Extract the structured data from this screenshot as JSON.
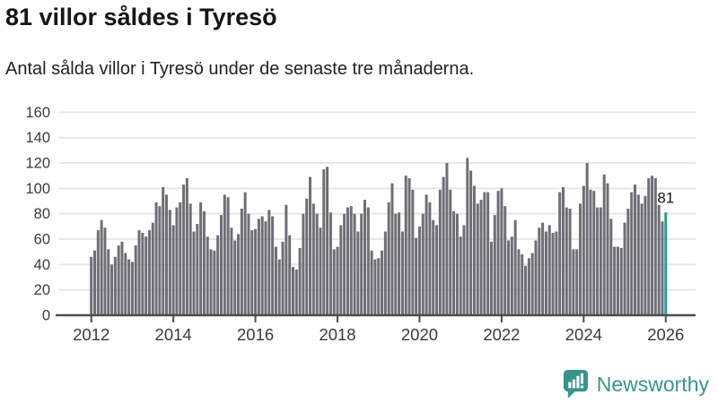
{
  "header": {
    "title": "81 villor såldes i Tyresö",
    "subtitle": "Antal sålda villor i Tyresö under de senaste tre månaderna."
  },
  "branding": {
    "name": "Newsworthy",
    "icon": "newsworthy-speech-bubble-bar-chart-icon",
    "color": "#37948c"
  },
  "colors": {
    "bar": "#6e6e75",
    "highlight": "#239c9c",
    "grid": "#e6e6e6",
    "axis": "#4d4d4d",
    "tick_label": "#3a3a3a",
    "value_label": "#161616"
  },
  "chart_data": {
    "type": "bar",
    "title": "81 villor såldes i Tyresö",
    "subtitle": "Antal sålda villor i Tyresö under de senaste tre månaderna.",
    "xlabel": "",
    "ylabel": "",
    "x_start": "2012-01",
    "frequency": "monthly",
    "ylim": [
      0,
      160
    ],
    "grid": true,
    "legend": false,
    "y_ticks": [
      0,
      20,
      40,
      60,
      80,
      100,
      120,
      140,
      160
    ],
    "x_tick_years": [
      2012,
      2014,
      2016,
      2018,
      2020,
      2022,
      2024,
      2026
    ],
    "values": [
      46,
      51,
      67,
      75,
      69,
      52,
      40,
      46,
      55,
      58,
      49,
      44,
      42,
      55,
      67,
      65,
      62,
      67,
      73,
      89,
      86,
      101,
      95,
      83,
      71,
      85,
      89,
      103,
      108,
      88,
      66,
      72,
      89,
      82,
      62,
      52,
      51,
      63,
      79,
      95,
      93,
      69,
      59,
      64,
      84,
      97,
      80,
      67,
      68,
      76,
      78,
      74,
      83,
      78,
      54,
      44,
      58,
      87,
      63,
      38,
      36,
      53,
      80,
      92,
      109,
      88,
      80,
      69,
      115,
      117,
      81,
      52,
      54,
      71,
      80,
      85,
      86,
      80,
      66,
      80,
      91,
      85,
      51,
      44,
      45,
      51,
      66,
      89,
      104,
      80,
      81,
      66,
      110,
      108,
      99,
      61,
      70,
      80,
      95,
      89,
      75,
      71,
      99,
      109,
      120,
      99,
      82,
      80,
      62,
      71,
      124,
      114,
      102,
      88,
      91,
      97,
      97,
      58,
      79,
      98,
      100,
      86,
      59,
      62,
      75,
      52,
      48,
      39,
      45,
      49,
      59,
      69,
      73,
      66,
      71,
      65,
      66,
      97,
      101,
      85,
      84,
      52,
      52,
      88,
      102,
      120,
      99,
      98,
      85,
      85,
      111,
      104,
      76,
      54,
      54,
      53,
      73,
      84,
      97,
      103,
      95,
      88,
      94,
      108,
      110,
      108,
      87,
      74,
      81
    ],
    "highlight": {
      "index": 168,
      "value": 81,
      "label": "81"
    }
  }
}
